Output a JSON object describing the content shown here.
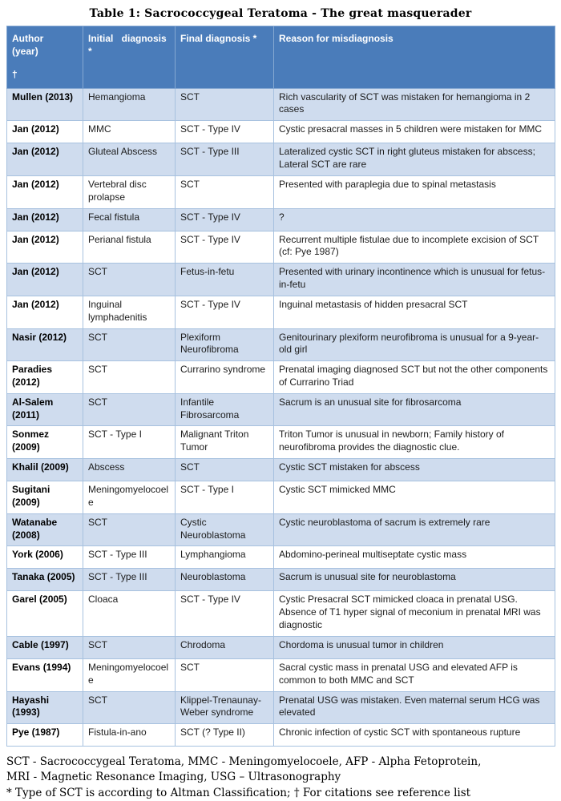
{
  "title": "Table 1: Sacrococcygeal Teratoma - The great masquerader",
  "colors": {
    "header_bg": "#4A7CBA",
    "header_text": "#FFFFFF",
    "row_alt_bg": "#CFDCEE",
    "row_bg": "#FFFFFF",
    "border": "#A7C1DF",
    "header_border": "#85A8D2",
    "text": "#1C1C1C"
  },
  "table": {
    "columns": [
      {
        "key": "author",
        "lines": [
          "Author (year)",
          "†"
        ]
      },
      {
        "key": "initial",
        "lines": [
          "Initial diagnosis",
          "*"
        ]
      },
      {
        "key": "final",
        "lines": [
          "Final diagnosis *"
        ]
      },
      {
        "key": "reason",
        "lines": [
          "Reason for misdiagnosis"
        ]
      }
    ],
    "rows": [
      {
        "author": "Mullen (2013)",
        "initial": "Hemangioma",
        "final": "SCT",
        "reason": "Rich vascularity of SCT was mistaken for hemangioma in 2 cases"
      },
      {
        "author": "Jan (2012)",
        "initial": "MMC",
        "final": "SCT - Type IV",
        "reason": "Cystic presacral masses in 5 children were mistaken for MMC"
      },
      {
        "author": "Jan (2012)",
        "initial": "Gluteal Abscess",
        "final": "SCT - Type III",
        "reason": "Lateralized cystic SCT in right gluteus mistaken for abscess;     Lateral SCT are rare"
      },
      {
        "author": "Jan (2012)",
        "initial": "Vertebral disc prolapse",
        "final": "SCT",
        "reason": "Presented with paraplegia due to spinal metastasis"
      },
      {
        "author": "Jan (2012)",
        "initial": "Fecal fistula",
        "final": "SCT - Type IV",
        "reason": "?"
      },
      {
        "author": "Jan (2012)",
        "initial": "Perianal fistula",
        "final": "SCT - Type IV",
        "reason": "Recurrent multiple fistulae due to incomplete excision of SCT (cf: Pye 1987)"
      },
      {
        "author": "Jan (2012)",
        "initial": "SCT",
        "final": "Fetus-in-fetu",
        "reason": "Presented with urinary incontinence which is unusual for fetus-in-fetu"
      },
      {
        "author": "Jan (2012)",
        "initial": "Inguinal lymphadenitis",
        "final": "SCT - Type IV",
        "reason": "Inguinal metastasis of hidden presacral SCT"
      },
      {
        "author": "Nasir (2012)",
        "initial": "SCT",
        "final": "Plexiform Neurofibroma",
        "reason": "Genitourinary plexiform neurofibroma is unusual for a 9-year-old girl"
      },
      {
        "author": "Paradies (2012)",
        "initial": "SCT",
        "final": "Currarino syndrome",
        "reason": "Prenatal imaging diagnosed SCT but not the other components of Currarino Triad"
      },
      {
        "author": "Al-Salem (2011)",
        "initial": "SCT",
        "final": "Infantile Fibrosarcoma",
        "reason": "Sacrum is an unusual site for fibrosarcoma"
      },
      {
        "author": "Sonmez (2009)",
        "initial": "SCT - Type I",
        "final": "Malignant Triton Tumor",
        "reason": "Triton Tumor is unusual in newborn; Family history of neurofibroma provides the diagnostic clue."
      },
      {
        "author": "Khalil (2009)",
        "initial": "Abscess",
        "final": "SCT",
        "reason": "Cystic SCT mistaken for abscess"
      },
      {
        "author": "Sugitani (2009)",
        "initial": "Meningomyelocoele",
        "final": "SCT - Type I",
        "reason": "Cystic SCT mimicked MMC"
      },
      {
        "author": "Watanabe (2008)",
        "initial": "SCT",
        "final": "Cystic Neuroblastoma",
        "reason": "Cystic neuroblastoma of sacrum is extremely rare"
      },
      {
        "author": "York (2006)",
        "initial": "SCT - Type III",
        "final": "Lymphangioma",
        "reason": "Abdomino-perineal multiseptate cystic mass"
      },
      {
        "author": "Tanaka (2005)",
        "initial": "SCT - Type III",
        "final": "Neuroblastoma",
        "reason": "Sacrum is unusual site for neuroblastoma"
      },
      {
        "author": "Garel (2005)",
        "initial": "Cloaca",
        "final": "SCT - Type IV",
        "reason": "Cystic Presacral SCT mimicked cloaca in prenatal USG. Absence of T1 hyper signal of meconium in prenatal MRI was diagnostic"
      },
      {
        "author": "Cable (1997)",
        "initial": "SCT",
        "final": "Chrodoma",
        "reason": "Chordoma is unusual tumor in children"
      },
      {
        "author": "Evans (1994)",
        "initial": "Meningomyelocoele",
        "final": "SCT",
        "reason": "Sacral cystic mass in prenatal USG and elevated AFP is common to both MMC and SCT"
      },
      {
        "author": "Hayashi (1993)",
        "initial": "SCT",
        "final": "Klippel-Trenaunay-Weber syndrome",
        "reason": "Prenatal USG was mistaken. Even maternal serum HCG was elevated"
      },
      {
        "author": "Pye (1987)",
        "initial": "Fistula-in-ano",
        "final": "SCT (? Type II)",
        "reason": "Chronic infection of cystic SCT with spontaneous rupture"
      }
    ]
  },
  "footnotes": [
    "SCT - Sacrococcygeal Teratoma, MMC - Meningomyelocoele, AFP - Alpha Fetoprotein,",
    "MRI - Magnetic Resonance Imaging, USG – Ultrasonography",
    "* Type of SCT is according to Altman Classification; † For citations see reference list"
  ]
}
